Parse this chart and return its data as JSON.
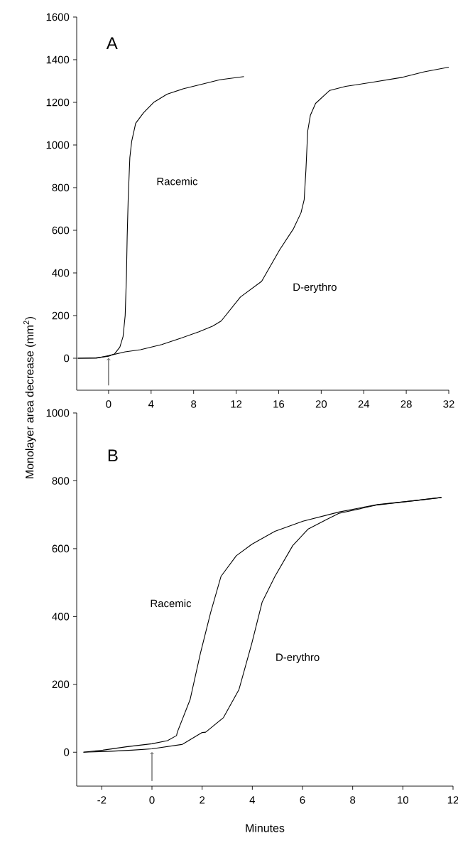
{
  "chart_data": [
    {
      "type": "line",
      "ylabel": "Monolayer area decrease (mm$^{2}$)",
      "annotations": [
        "A"
      ],
      "xlim": [
        -3,
        32
      ],
      "ylim": [
        -150,
        1600
      ],
      "xticks": [
        0,
        4,
        8,
        12,
        16,
        20,
        24,
        28,
        32
      ],
      "yticks": [
        0,
        200,
        400,
        600,
        800,
        1000,
        1200,
        1400,
        1600
      ],
      "marker": "none",
      "line_style": "solid",
      "grid": false,
      "series": [
        {
          "name": "Racemic",
          "color": "#000000",
          "x": [
            -2.9,
            -1.16,
            0,
            0.57,
            1.06,
            1.36,
            1.56,
            1.68,
            1.75,
            1.85,
            2.0,
            2.17,
            2.55,
            3.29,
            4.27,
            5.5,
            7.0,
            8.7,
            10.45,
            12.73
          ],
          "values": [
            0,
            2,
            9,
            21,
            52,
            101,
            200,
            385,
            571,
            756,
            941,
            1016,
            1102,
            1151,
            1201,
            1238,
            1263,
            1284,
            1306,
            1321
          ]
        },
        {
          "name": "D-erythro",
          "color": "#000000",
          "x": [
            -2.9,
            -1.16,
            0,
            1.56,
            3.0,
            5.0,
            6.75,
            8.5,
            9.8,
            10.6,
            12.4,
            14.4,
            16.1,
            17.4,
            18.1,
            18.4,
            18.56,
            18.73,
            18.98,
            19.47,
            20.8,
            22.3,
            24.8,
            27.7,
            29.7,
            32
          ],
          "values": [
            0,
            0,
            12,
            30,
            40,
            64,
            93,
            124,
            151,
            175,
            287,
            361,
            509,
            608,
            682,
            744,
            880,
            1065,
            1139,
            1195,
            1256,
            1275,
            1294,
            1318,
            1343,
            1365
          ]
        }
      ]
    },
    {
      "type": "line",
      "xlabel": "Minutes",
      "annotations": [
        "B"
      ],
      "xlim": [
        -3,
        12
      ],
      "ylim": [
        -100,
        1000
      ],
      "xticks": [
        -2,
        0,
        2,
        4,
        6,
        8,
        10,
        12
      ],
      "yticks": [
        0,
        200,
        400,
        600,
        800,
        1000
      ],
      "marker": "none",
      "line_style": "solid",
      "grid": false,
      "series": [
        {
          "name": "Racemic",
          "color": "#000000",
          "x": [
            -2.73,
            -1.96,
            -1.02,
            0,
            0.62,
            0.98,
            1.01,
            1.52,
            1.93,
            2.34,
            2.75,
            3.36,
            3.98,
            4.9,
            6.02,
            7.45,
            8.99,
            10.52,
            11.54
          ],
          "values": [
            0,
            6,
            16,
            25,
            34,
            49,
            59,
            155,
            291,
            412,
            518,
            579,
            613,
            651,
            681,
            708,
            730,
            742,
            751
          ]
        },
        {
          "name": "D-erythro",
          "color": "#000000",
          "x": [
            -2.73,
            -1.61,
            -0.8,
            0,
            1.21,
            2.0,
            2.14,
            2.85,
            3.47,
            3.98,
            4.39,
            4.9,
            5.61,
            6.23,
            6.94,
            7.45,
            8.99,
            10.52,
            11.54
          ],
          "values": [
            0,
            3,
            6,
            10,
            23,
            58,
            59,
            102,
            185,
            321,
            442,
            518,
            609,
            658,
            685,
            704,
            729,
            742,
            751
          ]
        }
      ]
    }
  ]
}
